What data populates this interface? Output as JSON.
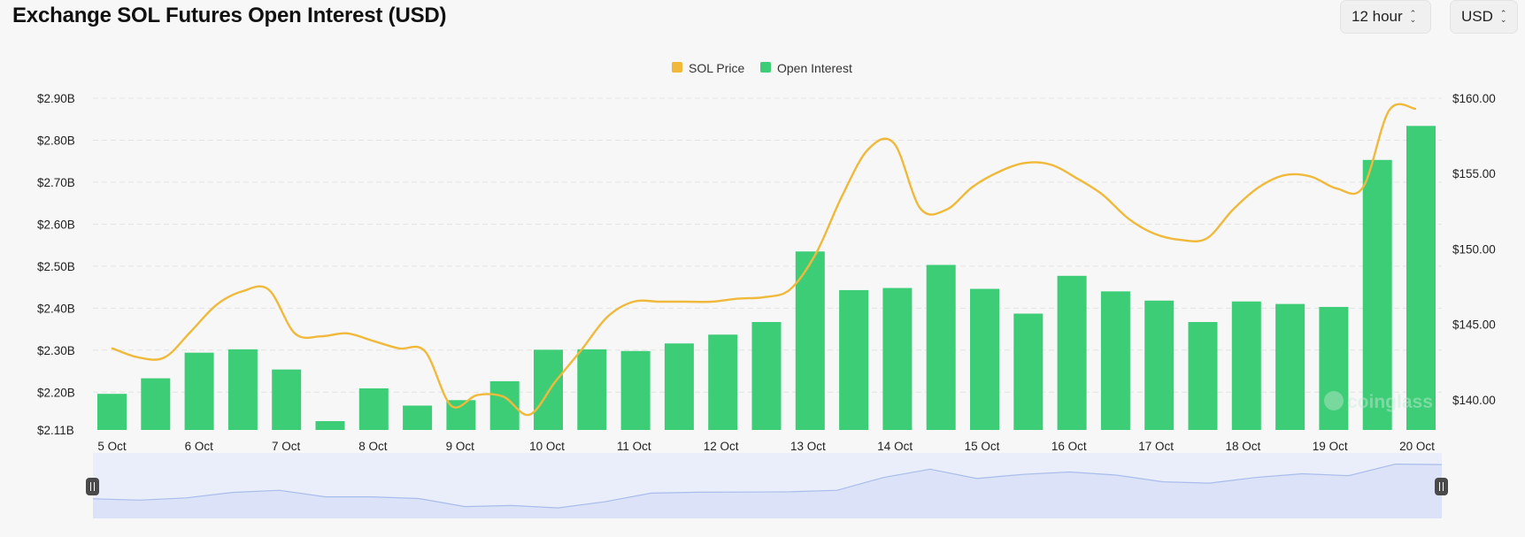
{
  "header": {
    "title": "Exchange SOL Futures Open Interest (USD)",
    "interval_select": "12 hour",
    "currency_select": "USD"
  },
  "watermark": "coinglass",
  "colors": {
    "price": "#F0B93B",
    "open_interest": "#3ECD77",
    "navigator_fill": "#DCE3F8",
    "navigator_line": "#A9BCEB"
  },
  "chart_data": {
    "type": "bar",
    "title": "Exchange SOL Futures Open Interest (USD)",
    "legend": {
      "position": "top-center",
      "items": [
        "SOL Price",
        "Open Interest"
      ]
    },
    "grid": "horizontal dashed",
    "x_ticks": [
      "5 Oct",
      "6 Oct",
      "7 Oct",
      "8 Oct",
      "9 Oct",
      "10 Oct",
      "11 Oct",
      "12 Oct",
      "13 Oct",
      "14 Oct",
      "15 Oct",
      "16 Oct",
      "17 Oct",
      "18 Oct",
      "19 Oct",
      "20 Oct"
    ],
    "y_left": {
      "label": "Open Interest",
      "ticks": [
        "$2.11B",
        "$2.20B",
        "$2.30B",
        "$2.40B",
        "$2.50B",
        "$2.60B",
        "$2.70B",
        "$2.80B",
        "$2.90B"
      ],
      "ylim": [
        2.11,
        2.9
      ]
    },
    "y_right": {
      "label": "SOL Price",
      "ticks": [
        "$140.00",
        "$145.00",
        "$150.00",
        "$155.00",
        "$160.00"
      ],
      "ylim": [
        137.99,
        160.0
      ]
    },
    "series": [
      {
        "name": "Open Interest",
        "type": "bar",
        "axis": "left",
        "unit": "B USD",
        "values": [
          2.196,
          2.233,
          2.294,
          2.302,
          2.254,
          2.131,
          2.209,
          2.168,
          2.181,
          2.226,
          2.301,
          2.302,
          2.298,
          2.316,
          2.337,
          2.367,
          2.535,
          2.443,
          2.448,
          2.503,
          2.446,
          2.387,
          2.477,
          2.44,
          2.418,
          2.367,
          2.416,
          2.41,
          2.403,
          2.753,
          2.834
        ]
      },
      {
        "name": "SOL Price",
        "type": "line",
        "axis": "right",
        "unit": "USD",
        "values": [
          143.4,
          142.8,
          142.8,
          144.5,
          146.3,
          147.2,
          147.3,
          144.4,
          144.2,
          144.4,
          143.9,
          143.4,
          143.2,
          139.6,
          140.3,
          140.2,
          139.0,
          141.2,
          143.3,
          145.5,
          146.5,
          146.5,
          146.5,
          146.5,
          146.7,
          146.8,
          147.3,
          149.7,
          153.5,
          156.6,
          157.0,
          152.7,
          152.6,
          154.1,
          155.1,
          155.7,
          155.6,
          154.7,
          153.6,
          152.0,
          151.0,
          150.6,
          150.7,
          152.6,
          154.1,
          154.9,
          154.8,
          154.0,
          154.1,
          159.2,
          159.3
        ]
      }
    ],
    "navigator": {
      "type": "area",
      "values": [
        143.4,
        142.8,
        143.8,
        146.3,
        147.3,
        144.3,
        144.3,
        143.5,
        139.8,
        140.3,
        139.2,
        142.0,
        146.0,
        146.4,
        146.5,
        146.6,
        147.3,
        153.2,
        157.0,
        152.7,
        154.6,
        155.7,
        154.3,
        151.2,
        150.6,
        153.2,
        154.9,
        154.0,
        159.3,
        159.1
      ]
    }
  }
}
